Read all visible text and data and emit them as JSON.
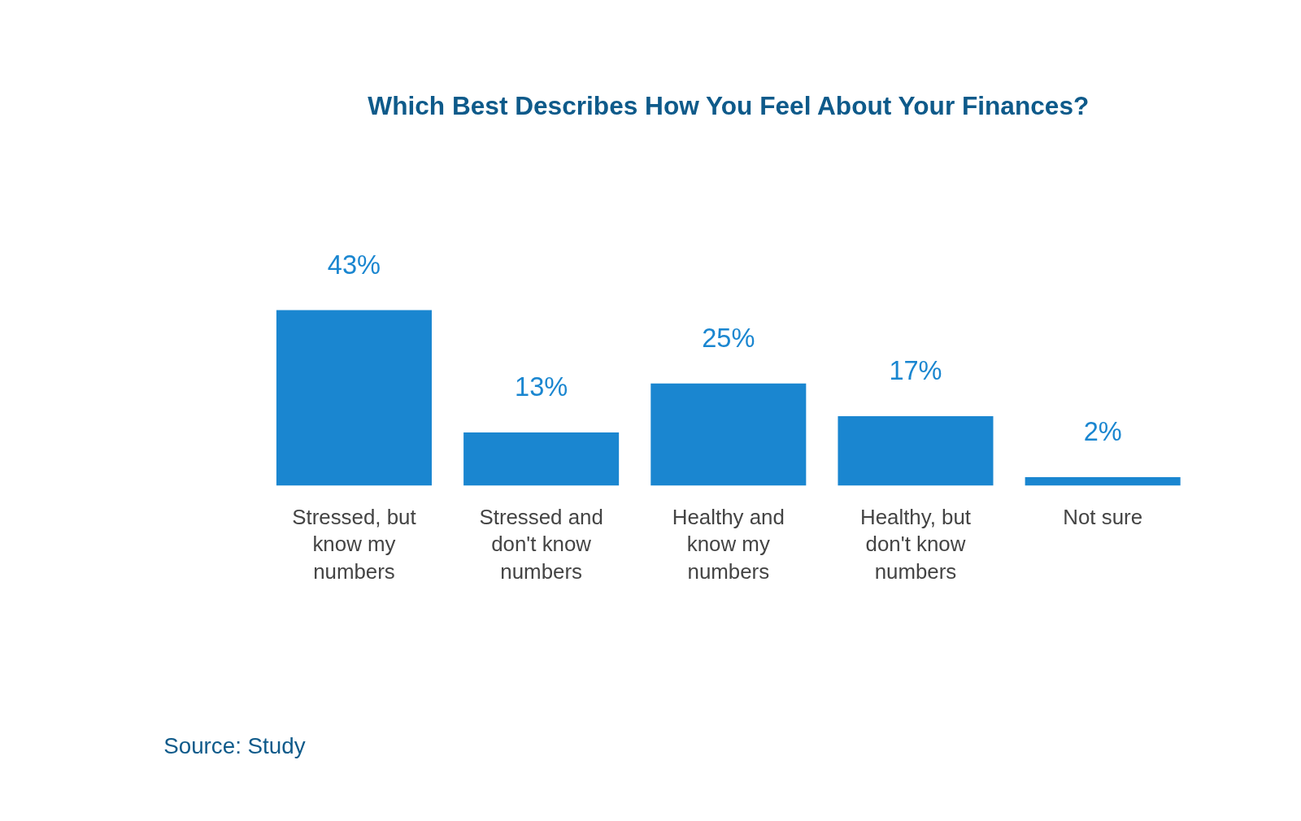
{
  "chart_data": {
    "type": "bar",
    "title": "Which Best Describes How You Feel About Your Finances?",
    "categories": [
      "Stressed, but know my numbers",
      "Stressed and don't know numbers",
      "Healthy and know my numbers",
      "Healthy, but don't know numbers",
      "Not sure"
    ],
    "values": [
      43,
      13,
      25,
      17,
      2
    ],
    "value_labels": [
      "43%",
      "13%",
      "25%",
      "17%",
      "2%"
    ],
    "color": "#1a86d0",
    "annotations": [
      "Source: Study"
    ]
  }
}
